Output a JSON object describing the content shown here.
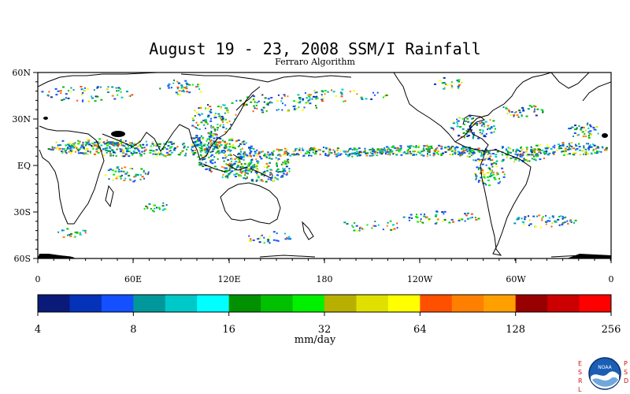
{
  "map": {
    "title": "August 19 - 23, 2008 SSM/I Rainfall",
    "subtitle": "Ferraro Algorithm",
    "lat_labels": [
      "60N",
      "30N",
      "EQ",
      "30S",
      "60S"
    ],
    "lon_labels": [
      "0",
      "60E",
      "120E",
      "180",
      "120W",
      "60W",
      "0"
    ]
  },
  "colorbar": {
    "unit_label": "mm/day",
    "tick_labels": [
      "4",
      "8",
      "16",
      "32",
      "64",
      "128",
      "256"
    ],
    "colors": [
      "#0a1a78",
      "#0432b8",
      "#1450ff",
      "#00989a",
      "#00c8c8",
      "#00ffff",
      "#009000",
      "#00c000",
      "#00f000",
      "#b8b000",
      "#e0e000",
      "#ffff00",
      "#ff5000",
      "#ff8000",
      "#ffa000",
      "#980000",
      "#cc0000",
      "#ff0000"
    ]
  },
  "branding": {
    "left_letters": [
      "E",
      "S",
      "R",
      "L"
    ],
    "right_letters": [
      "P",
      "S",
      "D"
    ],
    "logo_text": "NOAA"
  }
}
